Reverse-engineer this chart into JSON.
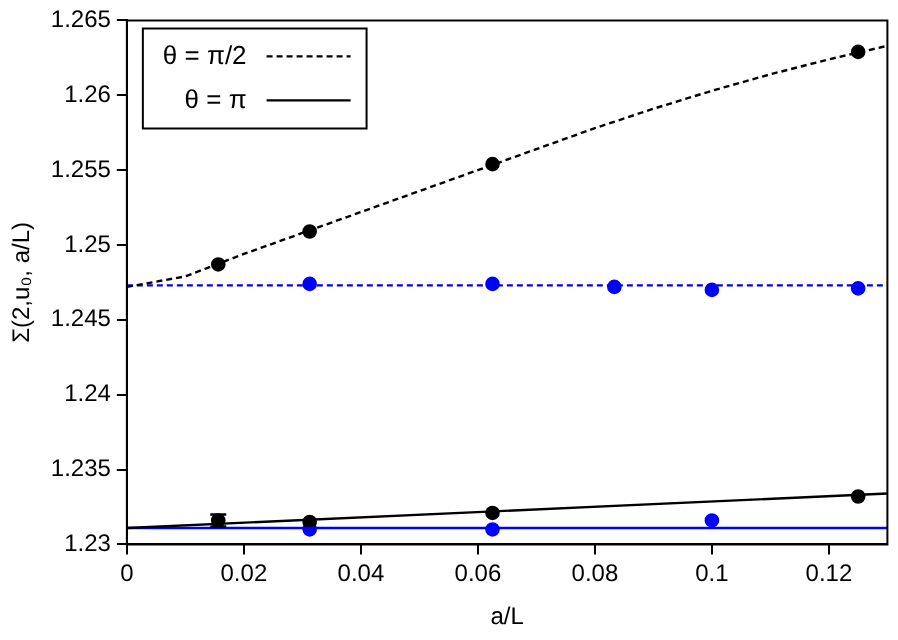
{
  "chart_data": {
    "type": "scatter",
    "xlabel": "a/L",
    "ylabel": "Σ(2,u₀, a/L)",
    "xlim": [
      0,
      0.13
    ],
    "xticks": [
      0,
      0.02,
      0.04,
      0.06,
      0.08,
      0.1,
      0.12
    ],
    "ylim": [
      1.23,
      1.265
    ],
    "yticks": [
      1.23,
      1.235,
      1.24,
      1.245,
      1.25,
      1.255,
      1.26,
      1.265
    ],
    "grid": false,
    "legend": "top left",
    "series": [
      {
        "name": "θ = π/2",
        "type": "line",
        "line_style": "dashed",
        "marker": "none",
        "color": "#000000",
        "x": [
          0,
          0.01,
          0.02,
          0.03,
          0.04,
          0.05,
          0.06,
          0.07,
          0.08,
          0.09,
          0.1,
          0.11,
          0.12,
          0.13
        ],
        "values": [
          1.2472,
          1.2479,
          1.2494,
          1.2508,
          1.2522,
          1.2536,
          1.255,
          1.2564,
          1.2578,
          1.2591,
          1.2603,
          1.2614,
          1.2624,
          1.2633
        ]
      },
      {
        "name": "θ = π",
        "type": "line",
        "line_style": "solid",
        "marker": "none",
        "color": "#000000",
        "x": [
          0,
          0.13
        ],
        "values": [
          1.2311,
          1.2334
        ]
      },
      {
        "type": "line",
        "line_style": "dashed",
        "marker": "none",
        "color": "#0000ff",
        "x": [
          0,
          0.13
        ],
        "values": [
          1.2473,
          1.2473
        ]
      },
      {
        "type": "line",
        "line_style": "solid",
        "marker": "none",
        "color": "#0000ff",
        "x": [
          0,
          0.13
        ],
        "values": [
          1.2311,
          1.2311
        ]
      },
      {
        "type": "scatter",
        "marker": "circle",
        "color": "#000000",
        "x": [
          0.015625,
          0.03125,
          0.0625,
          0.125
        ],
        "values": [
          1.2487,
          1.2509,
          1.2554,
          1.2629
        ]
      },
      {
        "type": "scatter",
        "marker": "circle",
        "color": "#000000",
        "x": [
          0.015625,
          0.03125,
          0.0625,
          0.125
        ],
        "values": [
          1.2316,
          1.2315,
          1.2321,
          1.2332
        ],
        "errors": [
          0.0004,
          null,
          null,
          null
        ]
      },
      {
        "type": "scatter",
        "marker": "circle",
        "color": "#0000ff",
        "x": [
          0.03125,
          0.0625,
          0.08333,
          0.1,
          0.125
        ],
        "values": [
          1.2474,
          1.2474,
          1.2472,
          1.247,
          1.2471
        ]
      },
      {
        "type": "scatter",
        "marker": "circle",
        "color": "#0000ff",
        "x": [
          0.03125,
          0.0625,
          0.1
        ],
        "values": [
          1.231,
          1.231,
          1.2316
        ]
      }
    ]
  }
}
